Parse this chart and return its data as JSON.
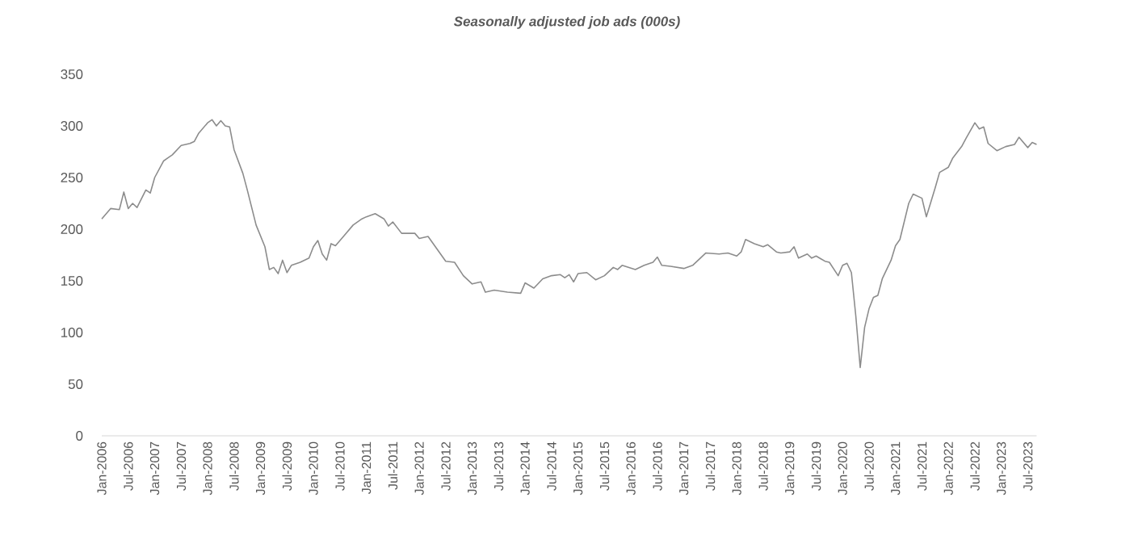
{
  "chart_data": {
    "type": "line",
    "title": "Seasonally adjusted job ads (000s)",
    "color": "#8c8c8c",
    "x": [
      "2006-01",
      "2006-03",
      "2006-05",
      "2006-06",
      "2006-07",
      "2006-08",
      "2006-09",
      "2006-11",
      "2006-12",
      "2007-01",
      "2007-03",
      "2007-04",
      "2007-05",
      "2007-07",
      "2007-09",
      "2007-10",
      "2007-11",
      "2008-01",
      "2008-02",
      "2008-03",
      "2008-04",
      "2008-05",
      "2008-06",
      "2008-07",
      "2008-09",
      "2008-10",
      "2008-12",
      "2009-02",
      "2009-03",
      "2009-04",
      "2009-05",
      "2009-06",
      "2009-07",
      "2009-08",
      "2009-10",
      "2009-12",
      "2010-01",
      "2010-02",
      "2010-03",
      "2010-04",
      "2010-05",
      "2010-06",
      "2010-08",
      "2010-10",
      "2010-12",
      "2011-01",
      "2011-03",
      "2011-05",
      "2011-06",
      "2011-07",
      "2011-09",
      "2011-12",
      "2012-01",
      "2012-03",
      "2012-05",
      "2012-07",
      "2012-09",
      "2012-11",
      "2013-01",
      "2013-03",
      "2013-04",
      "2013-06",
      "2013-09",
      "2013-12",
      "2014-01",
      "2014-03",
      "2014-05",
      "2014-07",
      "2014-09",
      "2014-10",
      "2014-11",
      "2014-12",
      "2015-01",
      "2015-03",
      "2015-05",
      "2015-07",
      "2015-09",
      "2015-10",
      "2015-11",
      "2016-02",
      "2016-04",
      "2016-06",
      "2016-07",
      "2016-08",
      "2016-10",
      "2017-01",
      "2017-03",
      "2017-06",
      "2017-09",
      "2017-11",
      "2018-01",
      "2018-02",
      "2018-03",
      "2018-05",
      "2018-07",
      "2018-08",
      "2018-10",
      "2018-11",
      "2019-01",
      "2019-02",
      "2019-03",
      "2019-05",
      "2019-06",
      "2019-07",
      "2019-09",
      "2019-10",
      "2019-12",
      "2020-01",
      "2020-02",
      "2020-03",
      "2020-04",
      "2020-05",
      "2020-06",
      "2020-07",
      "2020-08",
      "2020-09",
      "2020-10",
      "2020-12",
      "2021-01",
      "2021-02",
      "2021-04",
      "2021-05",
      "2021-07",
      "2021-08",
      "2021-10",
      "2021-11",
      "2022-01",
      "2022-02",
      "2022-04",
      "2022-05",
      "2022-07",
      "2022-08",
      "2022-09",
      "2022-10",
      "2022-12",
      "2023-02",
      "2023-04",
      "2023-05",
      "2023-07",
      "2023-08",
      "2023-09"
    ],
    "values": [
      210,
      220,
      219,
      236,
      220,
      225,
      221,
      238,
      235,
      250,
      266,
      269,
      272,
      281,
      283,
      285,
      293,
      303,
      306,
      300,
      305,
      300,
      299,
      277,
      254,
      238,
      204,
      183,
      161,
      163,
      157,
      170,
      158,
      165,
      168,
      172,
      183,
      189,
      176,
      170,
      186,
      184,
      194,
      204,
      210,
      212,
      215,
      210,
      203,
      207,
      196,
      196,
      191,
      193,
      181,
      169,
      168,
      155,
      147,
      149,
      139,
      141,
      139,
      138,
      148,
      143,
      152,
      155,
      156,
      153,
      156,
      149,
      157,
      158,
      151,
      155,
      163,
      161,
      165,
      161,
      165,
      168,
      173,
      165,
      164,
      162,
      165,
      177,
      176,
      177,
      174,
      178,
      190,
      186,
      183,
      185,
      178,
      177,
      178,
      183,
      172,
      176,
      172,
      174,
      169,
      168,
      155,
      165,
      167,
      158,
      116,
      66,
      105,
      123,
      134,
      136,
      152,
      170,
      184,
      190,
      225,
      234,
      230,
      212,
      240,
      255,
      260,
      269,
      280,
      288,
      303,
      297,
      299,
      283,
      276,
      280,
      282,
      289,
      279,
      284,
      282
    ],
    "xlim": [
      "2006-01",
      "2023-09"
    ],
    "ylim": [
      0,
      350
    ],
    "yticks": [
      0,
      50,
      100,
      150,
      200,
      250,
      300,
      350
    ],
    "xticks": [
      {
        "value": "2006-01",
        "label": "Jan-2006"
      },
      {
        "value": "2006-07",
        "label": "Jul-2006"
      },
      {
        "value": "2007-01",
        "label": "Jan-2007"
      },
      {
        "value": "2007-07",
        "label": "Jul-2007"
      },
      {
        "value": "2008-01",
        "label": "Jan-2008"
      },
      {
        "value": "2008-07",
        "label": "Jul-2008"
      },
      {
        "value": "2009-01",
        "label": "Jan-2009"
      },
      {
        "value": "2009-07",
        "label": "Jul-2009"
      },
      {
        "value": "2010-01",
        "label": "Jan-2010"
      },
      {
        "value": "2010-07",
        "label": "Jul-2010"
      },
      {
        "value": "2011-01",
        "label": "Jan-2011"
      },
      {
        "value": "2011-07",
        "label": "Jul-2011"
      },
      {
        "value": "2012-01",
        "label": "Jan-2012"
      },
      {
        "value": "2012-07",
        "label": "Jul-2012"
      },
      {
        "value": "2013-01",
        "label": "Jan-2013"
      },
      {
        "value": "2013-07",
        "label": "Jul-2013"
      },
      {
        "value": "2014-01",
        "label": "Jan-2014"
      },
      {
        "value": "2014-07",
        "label": "Jul-2014"
      },
      {
        "value": "2015-01",
        "label": "Jan-2015"
      },
      {
        "value": "2015-07",
        "label": "Jul-2015"
      },
      {
        "value": "2016-01",
        "label": "Jan-2016"
      },
      {
        "value": "2016-07",
        "label": "Jul-2016"
      },
      {
        "value": "2017-01",
        "label": "Jan-2017"
      },
      {
        "value": "2017-07",
        "label": "Jul-2017"
      },
      {
        "value": "2018-01",
        "label": "Jan-2018"
      },
      {
        "value": "2018-07",
        "label": "Jul-2018"
      },
      {
        "value": "2019-01",
        "label": "Jan-2019"
      },
      {
        "value": "2019-07",
        "label": "Jul-2019"
      },
      {
        "value": "2020-01",
        "label": "Jan-2020"
      },
      {
        "value": "2020-07",
        "label": "Jul-2020"
      },
      {
        "value": "2021-01",
        "label": "Jan-2021"
      },
      {
        "value": "2021-07",
        "label": "Jul-2021"
      },
      {
        "value": "2022-01",
        "label": "Jan-2022"
      },
      {
        "value": "2022-07",
        "label": "Jul-2022"
      },
      {
        "value": "2023-01",
        "label": "Jan-2023"
      },
      {
        "value": "2023-07",
        "label": "Jul-2023"
      }
    ]
  }
}
